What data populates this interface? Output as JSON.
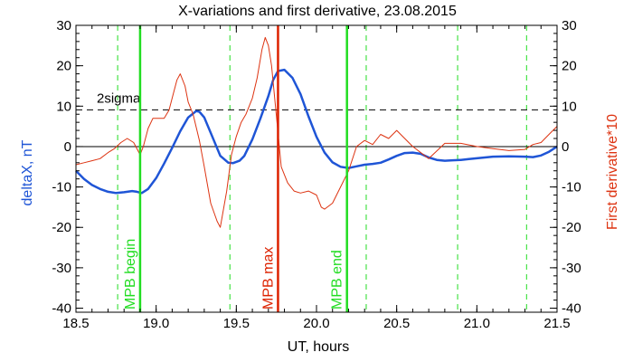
{
  "chart_data": {
    "type": "line",
    "title": "X-variations and first derivative, 23.08.2015",
    "xlabel": "UT, hours",
    "ylabel_left": "deltaX, nT",
    "ylabel_right": "First derivative*10",
    "xlim": [
      18.5,
      21.5
    ],
    "ylim_left": [
      -41,
      30
    ],
    "ylim_right": [
      -41,
      30
    ],
    "x_ticks": [
      "18.5",
      "19.0",
      "19.5",
      "20.0",
      "20.5",
      "21.0",
      "21.5"
    ],
    "y_ticks_left": [
      "30",
      "20",
      "10",
      "0",
      "-10",
      "-20",
      "-30",
      "-40"
    ],
    "y_ticks_right": [
      "30",
      "20",
      "10",
      "0",
      "-10",
      "-20",
      "-30",
      "-40"
    ],
    "grid": false,
    "zero_line": 0,
    "threshold": {
      "label": "2sigma",
      "y": 9.1
    },
    "dashed_markers_x": [
      18.76,
      19.46,
      20.31,
      20.88,
      21.31
    ],
    "events": [
      {
        "label": "MPB begin",
        "x": 18.9,
        "color": "#22dd22"
      },
      {
        "label": "MPB max",
        "x": 19.76,
        "color": "#dd2200"
      },
      {
        "label": "MPB end",
        "x": 20.19,
        "color": "#22dd22"
      }
    ],
    "series": [
      {
        "name": "deltaX",
        "axis": "left",
        "color": "#1f55d6",
        "x": [
          18.5,
          18.55,
          18.6,
          18.65,
          18.7,
          18.75,
          18.8,
          18.85,
          18.88,
          18.91,
          18.95,
          19.0,
          19.05,
          19.1,
          19.15,
          19.2,
          19.25,
          19.27,
          19.3,
          19.35,
          19.4,
          19.45,
          19.48,
          19.52,
          19.55,
          19.6,
          19.65,
          19.7,
          19.73,
          19.76,
          19.8,
          19.85,
          19.9,
          19.95,
          20.0,
          20.05,
          20.1,
          20.15,
          20.2,
          20.25,
          20.3,
          20.35,
          20.4,
          20.45,
          20.5,
          20.55,
          20.6,
          20.65,
          20.7,
          20.75,
          20.8,
          20.85,
          20.9,
          20.95,
          21.0,
          21.1,
          21.2,
          21.3,
          21.35,
          21.4,
          21.45,
          21.5
        ],
        "y": [
          -6,
          -8,
          -9.5,
          -10.5,
          -11.2,
          -11.5,
          -11.3,
          -11,
          -11.2,
          -11.5,
          -10.5,
          -7.8,
          -4.2,
          -0.3,
          3.8,
          7.2,
          8.8,
          8.6,
          7.2,
          2.5,
          -2.3,
          -4,
          -4.1,
          -3.5,
          -2.3,
          1.8,
          6.9,
          12.5,
          16.5,
          18.7,
          19,
          17,
          13,
          7.5,
          2.4,
          -1.5,
          -3.9,
          -5,
          -5.3,
          -4.9,
          -4.5,
          -4.3,
          -4,
          -3.2,
          -2.3,
          -1.6,
          -1.5,
          -1.8,
          -2.7,
          -3.3,
          -3.5,
          -3.4,
          -3.3,
          -3.1,
          -2.9,
          -2.5,
          -2.4,
          -2.5,
          -2.6,
          -2.2,
          -1.3,
          0
        ]
      },
      {
        "name": "First derivative*10",
        "axis": "right",
        "color": "#dd3311",
        "x": [
          18.5,
          18.55,
          18.6,
          18.65,
          18.7,
          18.74,
          18.78,
          18.82,
          18.86,
          18.9,
          18.92,
          18.95,
          18.98,
          19.02,
          19.05,
          19.08,
          19.1,
          19.13,
          19.15,
          19.18,
          19.2,
          19.23,
          19.27,
          19.3,
          19.34,
          19.38,
          19.4,
          19.44,
          19.47,
          19.5,
          19.53,
          19.56,
          19.6,
          19.63,
          19.66,
          19.68,
          19.7,
          19.72,
          19.75,
          19.78,
          19.82,
          19.86,
          19.9,
          19.95,
          20.0,
          20.03,
          20.05,
          20.1,
          20.15,
          20.2,
          20.25,
          20.3,
          20.35,
          20.4,
          20.45,
          20.5,
          20.6,
          20.7,
          20.8,
          20.9,
          21.0,
          21.1,
          21.2,
          21.3,
          21.35,
          21.4,
          21.45,
          21.5
        ],
        "y": [
          -4.5,
          -4,
          -3.5,
          -3,
          -1.5,
          -0.5,
          1,
          2,
          1,
          -2,
          0,
          4.5,
          7,
          7,
          7,
          9,
          12,
          16.5,
          18,
          15,
          11,
          8,
          1.5,
          -5,
          -14,
          -18.5,
          -20,
          -11,
          -2,
          2.5,
          6,
          8,
          12,
          17,
          24,
          27,
          25,
          20,
          7.5,
          -5,
          -9,
          -11,
          -11.5,
          -11,
          -12,
          -15,
          -15.5,
          -14,
          -10,
          -6,
          0,
          1.5,
          0.5,
          3,
          2,
          4,
          0,
          -3,
          0.8,
          0.8,
          0,
          -0.5,
          -1,
          -0.7,
          0.5,
          1,
          3,
          5
        ]
      }
    ]
  }
}
